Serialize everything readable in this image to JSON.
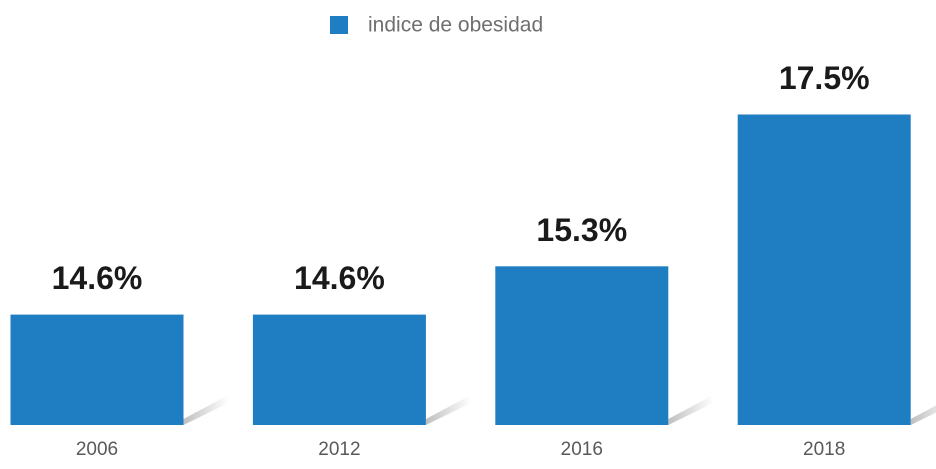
{
  "chart_data": {
    "type": "bar",
    "categories": [
      "2006",
      "2012",
      "2016",
      "2018"
    ],
    "series": [
      {
        "name": "indice de obesidad",
        "color": "#1f7dc2",
        "values": [
          14.6,
          14.6,
          15.3,
          17.5
        ],
        "value_labels": [
          "14.6%",
          "14.6%",
          "15.3%",
          "17.5%"
        ]
      }
    ],
    "ylim": [
      13,
      18.5
    ],
    "legend": "top",
    "grid": false
  }
}
